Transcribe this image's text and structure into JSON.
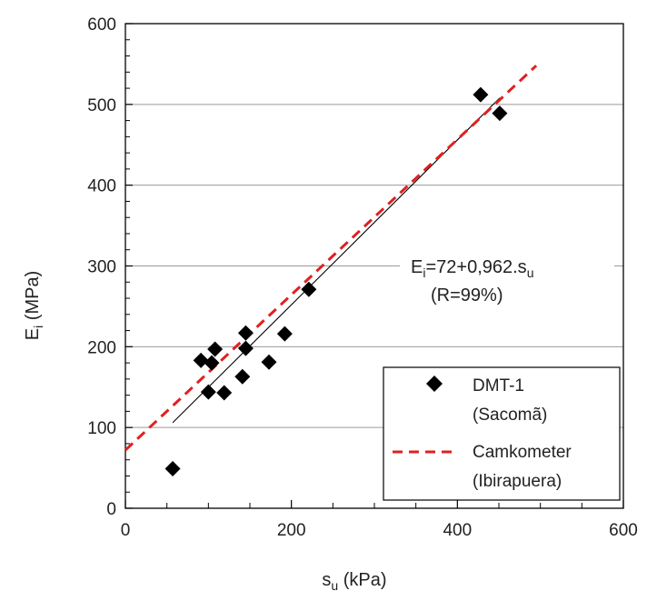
{
  "chart_data": {
    "type": "scatter",
    "xlabel": {
      "main": "s",
      "sub": "u",
      "unit": " (kPa)"
    },
    "ylabel": {
      "main": "E",
      "sub": "i",
      "unit": " (MPa)"
    },
    "xlim": [
      0,
      600
    ],
    "ylim": [
      0,
      600
    ],
    "x_ticks": [
      0,
      200,
      400,
      600
    ],
    "y_ticks": [
      0,
      100,
      200,
      300,
      400,
      500,
      600
    ],
    "grid": "horizontal",
    "legend_position": "bottom-right",
    "series": [
      {
        "name": "DMT-1",
        "name_line2": "(Sacomã)",
        "marker": "diamond",
        "color": "#000000",
        "points": [
          [
            57,
            49
          ],
          [
            91,
            183
          ],
          [
            100,
            144
          ],
          [
            104,
            180
          ],
          [
            108,
            197
          ],
          [
            119,
            143
          ],
          [
            141,
            163
          ],
          [
            145,
            198
          ],
          [
            145,
            217
          ],
          [
            173,
            181
          ],
          [
            192,
            216
          ],
          [
            221,
            271
          ],
          [
            428,
            512
          ],
          [
            451,
            489
          ]
        ]
      },
      {
        "name": "Camkometer",
        "name_line2": "(Ibirapuera)",
        "style": "dashed",
        "color": "#e02020",
        "line": {
          "x": [
            0,
            495
          ],
          "y": [
            72,
            548
          ]
        }
      }
    ],
    "trendline": {
      "x": [
        57,
        451
      ],
      "y": [
        106,
        508
      ],
      "color": "#000000"
    },
    "annotation": {
      "equation_main": "E",
      "equation_sub_1": "i",
      "equation_rest": "=72+0,962.s",
      "equation_sub_2": "u",
      "r_label": "(R=99%)"
    }
  }
}
